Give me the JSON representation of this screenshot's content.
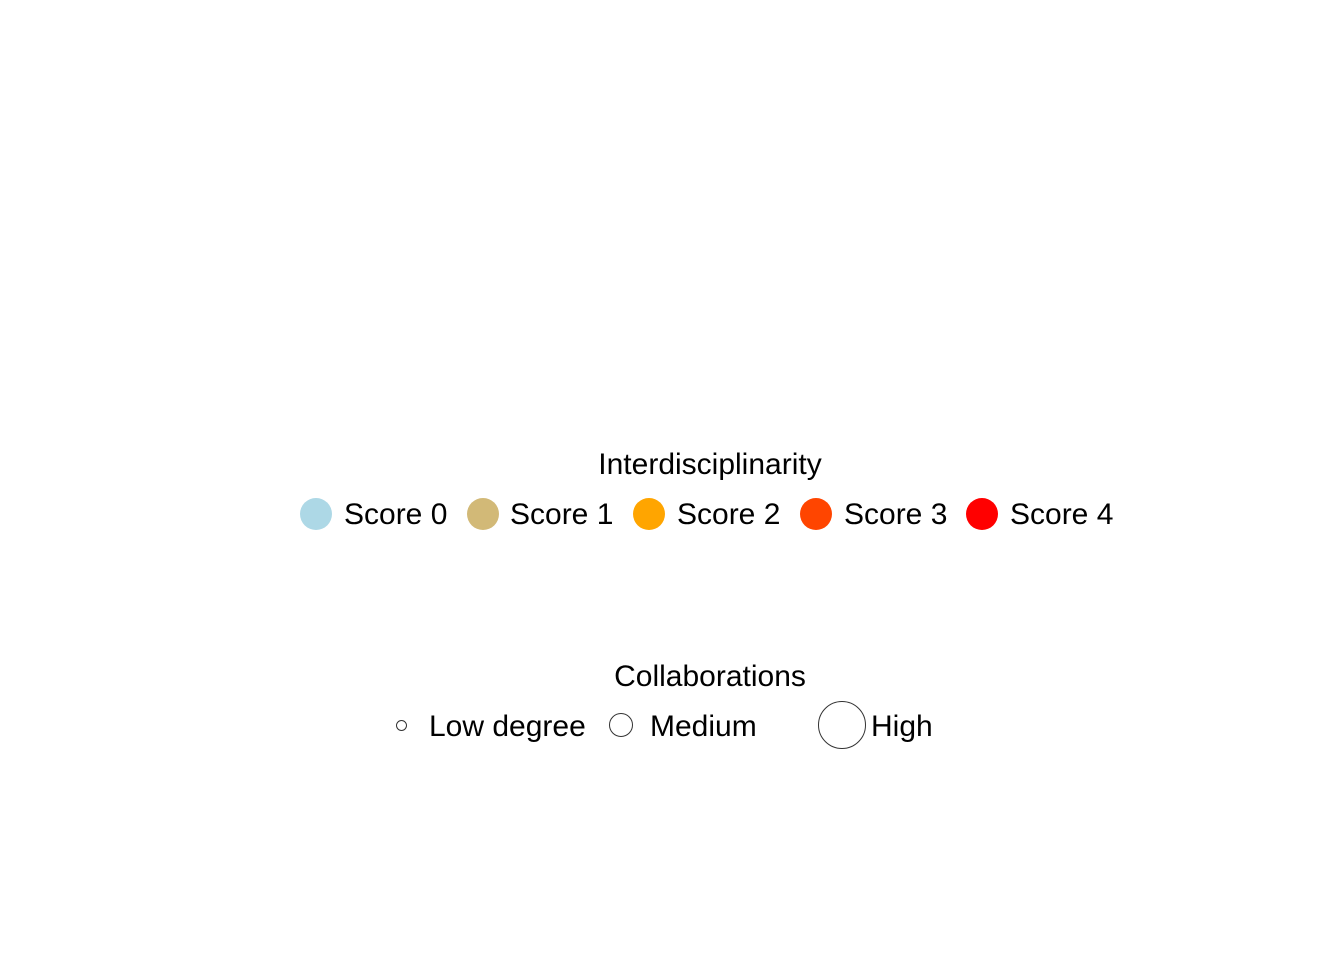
{
  "chart_data": [
    {
      "type": "legend",
      "title": "Interdisciplinarity",
      "entries": [
        {
          "label": "Score 0",
          "color": "#add8e6"
        },
        {
          "label": "Score 1",
          "color": "#d2b977"
        },
        {
          "label": "Score 2",
          "color": "#ffa500"
        },
        {
          "label": "Score 3",
          "color": "#ff4500"
        },
        {
          "label": "Score 4",
          "color": "#ff0000"
        }
      ]
    },
    {
      "type": "legend",
      "title": "Collaborations",
      "entries": [
        {
          "label": "Low degree"
        },
        {
          "label": "Medium"
        },
        {
          "label": "High"
        }
      ]
    }
  ]
}
